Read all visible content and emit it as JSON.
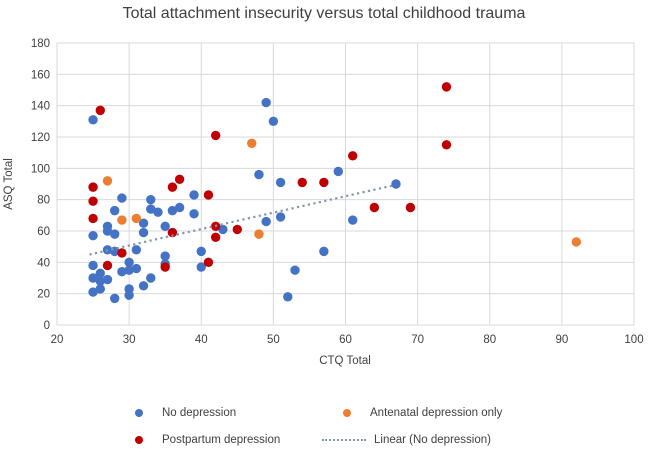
{
  "title": "Total attachment insecurity versus total childhood trauma",
  "chart_data": {
    "type": "scatter",
    "title": "Total attachment insecurity versus total childhood trauma",
    "xlabel": "CTQ Total",
    "ylabel": "ASQ Total",
    "xlim": [
      20,
      100
    ],
    "ylim": [
      0,
      180
    ],
    "x_ticks": [
      20,
      30,
      40,
      50,
      60,
      70,
      80,
      90,
      100
    ],
    "y_ticks": [
      0,
      20,
      40,
      60,
      80,
      100,
      120,
      140,
      160,
      180
    ],
    "grid": true,
    "gridline_color": "#d9d9d9",
    "legend_position": "bottom",
    "series": [
      {
        "name": "No depression",
        "color": "#4472c4",
        "points": [
          [
            25,
            131
          ],
          [
            49,
            142
          ],
          [
            50,
            130
          ],
          [
            48,
            96
          ],
          [
            59,
            98
          ],
          [
            51,
            91
          ],
          [
            67,
            90
          ],
          [
            29,
            81
          ],
          [
            33,
            80
          ],
          [
            39,
            83
          ],
          [
            28,
            73
          ],
          [
            33,
            74
          ],
          [
            34,
            72
          ],
          [
            36,
            73
          ],
          [
            37,
            75
          ],
          [
            39,
            71
          ],
          [
            61,
            67
          ],
          [
            49,
            66
          ],
          [
            51,
            69
          ],
          [
            32,
            65
          ],
          [
            35,
            63
          ],
          [
            27,
            63
          ],
          [
            27,
            60
          ],
          [
            28,
            58
          ],
          [
            32,
            59
          ],
          [
            25,
            57
          ],
          [
            43,
            61
          ],
          [
            27,
            48
          ],
          [
            28,
            47
          ],
          [
            31,
            48
          ],
          [
            35,
            44
          ],
          [
            57,
            47
          ],
          [
            40,
            47
          ],
          [
            25,
            38
          ],
          [
            30,
            40
          ],
          [
            35,
            39
          ],
          [
            29,
            34
          ],
          [
            30,
            35
          ],
          [
            31,
            36
          ],
          [
            40,
            37
          ],
          [
            26,
            33
          ],
          [
            25,
            30
          ],
          [
            26,
            28
          ],
          [
            27,
            29
          ],
          [
            33,
            30
          ],
          [
            32,
            25
          ],
          [
            30,
            23
          ],
          [
            30,
            19
          ],
          [
            25,
            21
          ],
          [
            26,
            23
          ],
          [
            28,
            17
          ],
          [
            53,
            35
          ],
          [
            52,
            18
          ]
        ]
      },
      {
        "name": "Postpartum depression",
        "color": "#c00000",
        "points": [
          [
            26,
            137
          ],
          [
            74,
            152
          ],
          [
            74,
            115
          ],
          [
            42,
            121
          ],
          [
            61,
            108
          ],
          [
            54,
            91
          ],
          [
            57,
            91
          ],
          [
            36,
            88
          ],
          [
            37,
            93
          ],
          [
            25,
            88
          ],
          [
            25,
            79
          ],
          [
            41,
            83
          ],
          [
            25,
            68
          ],
          [
            29,
            46
          ],
          [
            27,
            38
          ],
          [
            35,
            37
          ],
          [
            36,
            59
          ],
          [
            42,
            63
          ],
          [
            42,
            56
          ],
          [
            45,
            61
          ],
          [
            41,
            40
          ],
          [
            64,
            75
          ],
          [
            69,
            75
          ]
        ]
      },
      {
        "name": "Antenatal depression only",
        "color": "#ed7d31",
        "points": [
          [
            27,
            92
          ],
          [
            47,
            116
          ],
          [
            29,
            67
          ],
          [
            31,
            68
          ],
          [
            48,
            58
          ],
          [
            92,
            53
          ]
        ]
      }
    ],
    "trendline": {
      "name": "Linear (No depression)",
      "color": "#8496b0",
      "style": "dotted",
      "from": [
        24.5,
        45
      ],
      "to": [
        66.5,
        89
      ]
    }
  },
  "legend": {
    "items": [
      {
        "label": "No depression",
        "marker": "circle",
        "color": "#4472c4"
      },
      {
        "label": "Antenatal depression only",
        "marker": "circle",
        "color": "#ed7d31"
      },
      {
        "label": "Postpartum depression",
        "marker": "circle",
        "color": "#c00000"
      },
      {
        "label": "Linear (No depression)",
        "marker": "dotted-line",
        "color": "#8496b0"
      }
    ]
  }
}
